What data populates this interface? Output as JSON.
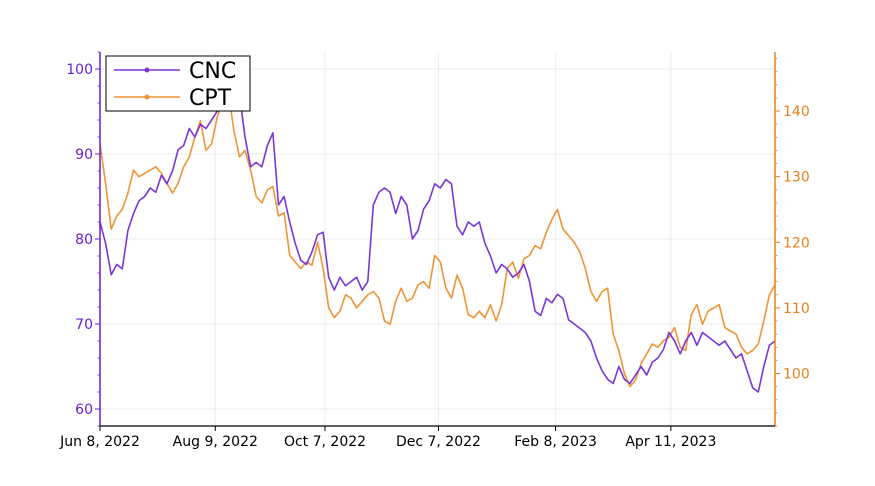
{
  "chart_data": {
    "type": "line",
    "x_axis": {
      "type": "date",
      "tick_labels": [
        "Jun 8, 2022",
        "Aug 9, 2022",
        "Oct 7, 2022",
        "Dec 7, 2022",
        "Feb 8, 2023",
        "Apr 11, 2023"
      ],
      "ticks": [
        "2022-06-08",
        "2022-08-09",
        "2022-10-07",
        "2022-12-07",
        "2023-02-08",
        "2023-04-11"
      ],
      "range": [
        "2022-06-08",
        "2023-06-06"
      ]
    },
    "y_left": {
      "range": [
        58,
        102
      ],
      "ticks": [
        60,
        70,
        80,
        90,
        100
      ],
      "color": "#6a1ed2"
    },
    "y_right": {
      "range": [
        92,
        149
      ],
      "ticks": [
        100,
        110,
        120,
        130,
        140
      ],
      "color": "#e5801c"
    },
    "grid": true,
    "legend": "top-left",
    "series": [
      {
        "name": "CNC",
        "axis": "left",
        "color": "#7a37d8",
        "marker": "dot",
        "points": [
          [
            "2022-06-08",
            82
          ],
          [
            "2022-06-11",
            79.5
          ],
          [
            "2022-06-14",
            75.8
          ],
          [
            "2022-06-17",
            77
          ],
          [
            "2022-06-20",
            76.5
          ],
          [
            "2022-06-23",
            81
          ],
          [
            "2022-06-26",
            83
          ],
          [
            "2022-06-29",
            84.5
          ],
          [
            "2022-07-02",
            85
          ],
          [
            "2022-07-05",
            86
          ],
          [
            "2022-07-08",
            85.5
          ],
          [
            "2022-07-11",
            87.5
          ],
          [
            "2022-07-14",
            86.5
          ],
          [
            "2022-07-17",
            88
          ],
          [
            "2022-07-20",
            90.5
          ],
          [
            "2022-07-23",
            91
          ],
          [
            "2022-07-26",
            93
          ],
          [
            "2022-07-29",
            92
          ],
          [
            "2022-08-01",
            93.5
          ],
          [
            "2022-08-04",
            93
          ],
          [
            "2022-08-07",
            94
          ],
          [
            "2022-08-10",
            95
          ],
          [
            "2022-08-13",
            96.5
          ],
          [
            "2022-08-16",
            97
          ],
          [
            "2022-08-19",
            98
          ],
          [
            "2022-08-22",
            97
          ],
          [
            "2022-08-25",
            92
          ],
          [
            "2022-08-28",
            88.5
          ],
          [
            "2022-08-31",
            89
          ],
          [
            "2022-09-03",
            88.5
          ],
          [
            "2022-09-06",
            91
          ],
          [
            "2022-09-09",
            92.5
          ],
          [
            "2022-09-12",
            84
          ],
          [
            "2022-09-15",
            85
          ],
          [
            "2022-09-18",
            82
          ],
          [
            "2022-09-21",
            79.5
          ],
          [
            "2022-09-24",
            77.5
          ],
          [
            "2022-09-27",
            77
          ],
          [
            "2022-09-30",
            78.5
          ],
          [
            "2022-10-03",
            80.5
          ],
          [
            "2022-10-06",
            80.8
          ],
          [
            "2022-10-09",
            75.5
          ],
          [
            "2022-10-12",
            74
          ],
          [
            "2022-10-15",
            75.5
          ],
          [
            "2022-10-18",
            74.5
          ],
          [
            "2022-10-21",
            75
          ],
          [
            "2022-10-24",
            75.5
          ],
          [
            "2022-10-27",
            74
          ],
          [
            "2022-10-30",
            75
          ],
          [
            "2022-11-02",
            84
          ],
          [
            "2022-11-05",
            85.5
          ],
          [
            "2022-11-08",
            86
          ],
          [
            "2022-11-11",
            85.5
          ],
          [
            "2022-11-14",
            83
          ],
          [
            "2022-11-17",
            85
          ],
          [
            "2022-11-20",
            84
          ],
          [
            "2022-11-23",
            80
          ],
          [
            "2022-11-26",
            81
          ],
          [
            "2022-11-29",
            83.5
          ],
          [
            "2022-12-02",
            84.5
          ],
          [
            "2022-12-05",
            86.5
          ],
          [
            "2022-12-08",
            86
          ],
          [
            "2022-12-11",
            87
          ],
          [
            "2022-12-14",
            86.5
          ],
          [
            "2022-12-17",
            81.5
          ],
          [
            "2022-12-20",
            80.5
          ],
          [
            "2022-12-23",
            82
          ],
          [
            "2022-12-26",
            81.5
          ],
          [
            "2022-12-29",
            82
          ],
          [
            "2023-01-01",
            79.5
          ],
          [
            "2023-01-04",
            78
          ],
          [
            "2023-01-07",
            76
          ],
          [
            "2023-01-10",
            77
          ],
          [
            "2023-01-13",
            76.5
          ],
          [
            "2023-01-16",
            75.5
          ],
          [
            "2023-01-19",
            76
          ],
          [
            "2023-01-22",
            77
          ],
          [
            "2023-01-25",
            75
          ],
          [
            "2023-01-28",
            71.5
          ],
          [
            "2023-01-31",
            71
          ],
          [
            "2023-02-03",
            73
          ],
          [
            "2023-02-06",
            72.5
          ],
          [
            "2023-02-09",
            73.5
          ],
          [
            "2023-02-12",
            73
          ],
          [
            "2023-02-15",
            70.5
          ],
          [
            "2023-02-18",
            70
          ],
          [
            "2023-02-21",
            69.5
          ],
          [
            "2023-02-24",
            69
          ],
          [
            "2023-02-27",
            68
          ],
          [
            "2023-03-02",
            66
          ],
          [
            "2023-03-05",
            64.5
          ],
          [
            "2023-03-08",
            63.5
          ],
          [
            "2023-03-11",
            63
          ],
          [
            "2023-03-14",
            65
          ],
          [
            "2023-03-17",
            63.5
          ],
          [
            "2023-03-20",
            63
          ],
          [
            "2023-03-23",
            64
          ],
          [
            "2023-03-26",
            65
          ],
          [
            "2023-03-29",
            64
          ],
          [
            "2023-04-01",
            65.5
          ],
          [
            "2023-04-04",
            66
          ],
          [
            "2023-04-07",
            67
          ],
          [
            "2023-04-10",
            69
          ],
          [
            "2023-04-13",
            68
          ],
          [
            "2023-04-16",
            66.5
          ],
          [
            "2023-04-19",
            68
          ],
          [
            "2023-04-22",
            69
          ],
          [
            "2023-04-25",
            67.5
          ],
          [
            "2023-04-28",
            69
          ],
          [
            "2023-05-01",
            68.5
          ],
          [
            "2023-05-04",
            68
          ],
          [
            "2023-05-07",
            67.5
          ],
          [
            "2023-05-10",
            68
          ],
          [
            "2023-05-13",
            67
          ],
          [
            "2023-05-16",
            66
          ],
          [
            "2023-05-19",
            66.5
          ],
          [
            "2023-05-22",
            64.5
          ],
          [
            "2023-05-25",
            62.5
          ],
          [
            "2023-05-28",
            62
          ],
          [
            "2023-05-31",
            65
          ],
          [
            "2023-06-03",
            67.5
          ],
          [
            "2023-06-06",
            68
          ]
        ]
      },
      {
        "name": "CPT",
        "axis": "right",
        "color": "#ef9437",
        "marker": "dot",
        "points": [
          [
            "2022-06-08",
            135
          ],
          [
            "2022-06-11",
            129
          ],
          [
            "2022-06-14",
            122
          ],
          [
            "2022-06-17",
            124
          ],
          [
            "2022-06-20",
            125
          ],
          [
            "2022-06-23",
            127.5
          ],
          [
            "2022-06-26",
            131
          ],
          [
            "2022-06-29",
            130
          ],
          [
            "2022-07-02",
            130.5
          ],
          [
            "2022-07-05",
            131
          ],
          [
            "2022-07-08",
            131.5
          ],
          [
            "2022-07-11",
            130.5
          ],
          [
            "2022-07-14",
            129
          ],
          [
            "2022-07-17",
            127.5
          ],
          [
            "2022-07-20",
            129
          ],
          [
            "2022-07-23",
            131.5
          ],
          [
            "2022-07-26",
            133
          ],
          [
            "2022-07-29",
            136
          ],
          [
            "2022-08-01",
            138.5
          ],
          [
            "2022-08-04",
            134
          ],
          [
            "2022-08-07",
            135
          ],
          [
            "2022-08-10",
            139
          ],
          [
            "2022-08-13",
            141.5
          ],
          [
            "2022-08-16",
            143
          ],
          [
            "2022-08-19",
            137
          ],
          [
            "2022-08-22",
            133
          ],
          [
            "2022-08-25",
            134
          ],
          [
            "2022-08-28",
            131
          ],
          [
            "2022-08-31",
            127
          ],
          [
            "2022-09-03",
            126
          ],
          [
            "2022-09-06",
            128
          ],
          [
            "2022-09-09",
            128.5
          ],
          [
            "2022-09-12",
            124
          ],
          [
            "2022-09-15",
            124.5
          ],
          [
            "2022-09-18",
            118
          ],
          [
            "2022-09-21",
            117
          ],
          [
            "2022-09-24",
            116
          ],
          [
            "2022-09-27",
            117
          ],
          [
            "2022-09-30",
            116.5
          ],
          [
            "2022-10-03",
            120
          ],
          [
            "2022-10-06",
            116
          ],
          [
            "2022-10-09",
            110
          ],
          [
            "2022-10-12",
            108.5
          ],
          [
            "2022-10-15",
            109.5
          ],
          [
            "2022-10-18",
            112
          ],
          [
            "2022-10-21",
            111.5
          ],
          [
            "2022-10-24",
            110
          ],
          [
            "2022-10-27",
            111
          ],
          [
            "2022-10-30",
            112
          ],
          [
            "2022-11-02",
            112.5
          ],
          [
            "2022-11-05",
            111.5
          ],
          [
            "2022-11-08",
            108
          ],
          [
            "2022-11-11",
            107.5
          ],
          [
            "2022-11-14",
            111
          ],
          [
            "2022-11-17",
            113
          ],
          [
            "2022-11-20",
            111
          ],
          [
            "2022-11-23",
            111.5
          ],
          [
            "2022-11-26",
            113.5
          ],
          [
            "2022-11-29",
            114
          ],
          [
            "2022-12-02",
            113
          ],
          [
            "2022-12-05",
            118
          ],
          [
            "2022-12-08",
            117
          ],
          [
            "2022-12-11",
            113
          ],
          [
            "2022-12-14",
            111.5
          ],
          [
            "2022-12-17",
            115
          ],
          [
            "2022-12-20",
            113
          ],
          [
            "2022-12-23",
            109
          ],
          [
            "2022-12-26",
            108.5
          ],
          [
            "2022-12-29",
            109.5
          ],
          [
            "2023-01-01",
            108.5
          ],
          [
            "2023-01-04",
            110.5
          ],
          [
            "2023-01-07",
            108
          ],
          [
            "2023-01-10",
            110.5
          ],
          [
            "2023-01-13",
            116
          ],
          [
            "2023-01-16",
            117
          ],
          [
            "2023-01-19",
            114.5
          ],
          [
            "2023-01-22",
            117.5
          ],
          [
            "2023-01-25",
            118
          ],
          [
            "2023-01-28",
            119.5
          ],
          [
            "2023-01-31",
            119
          ],
          [
            "2023-02-03",
            121.5
          ],
          [
            "2023-02-06",
            123.5
          ],
          [
            "2023-02-09",
            125
          ],
          [
            "2023-02-12",
            122
          ],
          [
            "2023-02-15",
            121
          ],
          [
            "2023-02-18",
            120
          ],
          [
            "2023-02-21",
            118.5
          ],
          [
            "2023-02-24",
            116
          ],
          [
            "2023-02-27",
            112.5
          ],
          [
            "2023-03-02",
            111
          ],
          [
            "2023-03-05",
            112.5
          ],
          [
            "2023-03-08",
            113
          ],
          [
            "2023-03-11",
            106
          ],
          [
            "2023-03-14",
            103.5
          ],
          [
            "2023-03-17",
            100
          ],
          [
            "2023-03-20",
            98
          ],
          [
            "2023-03-23",
            99
          ],
          [
            "2023-03-26",
            101.5
          ],
          [
            "2023-03-29",
            103
          ],
          [
            "2023-04-01",
            104.5
          ],
          [
            "2023-04-04",
            104
          ],
          [
            "2023-04-07",
            105
          ],
          [
            "2023-04-10",
            105.5
          ],
          [
            "2023-04-13",
            107
          ],
          [
            "2023-04-16",
            104
          ],
          [
            "2023-04-19",
            103.5
          ],
          [
            "2023-04-22",
            109
          ],
          [
            "2023-04-25",
            110.5
          ],
          [
            "2023-04-28",
            107.5
          ],
          [
            "2023-05-01",
            109.5
          ],
          [
            "2023-05-04",
            110
          ],
          [
            "2023-05-07",
            110.5
          ],
          [
            "2023-05-10",
            107
          ],
          [
            "2023-05-13",
            106.5
          ],
          [
            "2023-05-16",
            106
          ],
          [
            "2023-05-19",
            104
          ],
          [
            "2023-05-22",
            103
          ],
          [
            "2023-05-25",
            103.5
          ],
          [
            "2023-05-28",
            104.5
          ],
          [
            "2023-05-31",
            108
          ],
          [
            "2023-06-03",
            112
          ],
          [
            "2023-06-06",
            113.5
          ]
        ]
      }
    ]
  }
}
